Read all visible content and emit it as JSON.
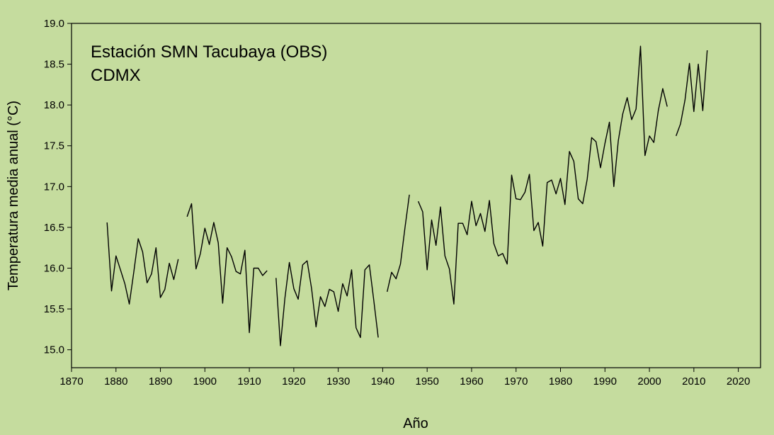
{
  "chart_data": {
    "type": "line",
    "title": "Estación SMN Tacubaya (OBS)",
    "subtitle": "CDMX",
    "xlabel": "Año",
    "ylabel": "Temperatura media anual (°C)",
    "xlim": [
      1870,
      2025
    ],
    "ylim": [
      14.78,
      19.0
    ],
    "x_ticks": [
      "1870",
      "1880",
      "1890",
      "1900",
      "1910",
      "1920",
      "1930",
      "1940",
      "1950",
      "1960",
      "1970",
      "1980",
      "1990",
      "2000",
      "2010",
      "2020"
    ],
    "y_ticks": [
      "15.0",
      "15.5",
      "16.0",
      "16.5",
      "17.0",
      "17.5",
      "18.0",
      "18.5",
      "19.0"
    ],
    "grid": false,
    "legend": "none",
    "line_color": "#000000",
    "background_color": "#c5dc9e",
    "series": [
      {
        "segments": [
          [
            [
              1878,
              16.56
            ],
            [
              1879,
              15.72
            ],
            [
              1880,
              16.15
            ],
            [
              1881,
              15.98
            ],
            [
              1882,
              15.81
            ],
            [
              1883,
              15.56
            ],
            [
              1884,
              15.95
            ],
            [
              1885,
              16.36
            ],
            [
              1886,
              16.2
            ],
            [
              1887,
              15.82
            ],
            [
              1888,
              15.93
            ],
            [
              1889,
              16.25
            ],
            [
              1890,
              15.64
            ],
            [
              1891,
              15.74
            ],
            [
              1892,
              16.06
            ],
            [
              1893,
              15.86
            ],
            [
              1894,
              16.11
            ]
          ],
          [
            [
              1896,
              16.63
            ],
            [
              1897,
              16.79
            ],
            [
              1898,
              15.99
            ],
            [
              1899,
              16.18
            ],
            [
              1900,
              16.49
            ],
            [
              1901,
              16.29
            ],
            [
              1902,
              16.56
            ],
            [
              1903,
              16.31
            ],
            [
              1904,
              15.57
            ],
            [
              1905,
              16.25
            ],
            [
              1906,
              16.14
            ],
            [
              1907,
              15.96
            ],
            [
              1908,
              15.93
            ],
            [
              1909,
              16.22
            ],
            [
              1910,
              15.21
            ],
            [
              1911,
              16.0
            ],
            [
              1912,
              16.0
            ],
            [
              1913,
              15.91
            ],
            [
              1914,
              15.97
            ]
          ],
          [
            [
              1916,
              15.88
            ],
            [
              1917,
              15.05
            ],
            [
              1918,
              15.63
            ],
            [
              1919,
              16.07
            ],
            [
              1920,
              15.75
            ],
            [
              1921,
              15.62
            ],
            [
              1922,
              16.04
            ],
            [
              1923,
              16.09
            ],
            [
              1924,
              15.75
            ],
            [
              1925,
              15.28
            ],
            [
              1926,
              15.65
            ],
            [
              1927,
              15.53
            ],
            [
              1928,
              15.74
            ],
            [
              1929,
              15.71
            ],
            [
              1930,
              15.47
            ],
            [
              1931,
              15.81
            ],
            [
              1932,
              15.66
            ],
            [
              1933,
              15.98
            ],
            [
              1934,
              15.27
            ],
            [
              1935,
              15.15
            ],
            [
              1936,
              15.98
            ],
            [
              1937,
              16.04
            ],
            [
              1938,
              15.6
            ],
            [
              1939,
              15.15
            ]
          ],
          [
            [
              1941,
              15.71
            ],
            [
              1942,
              15.95
            ],
            [
              1943,
              15.87
            ],
            [
              1944,
              16.05
            ],
            [
              1945,
              16.49
            ],
            [
              1946,
              16.9
            ]
          ],
          [
            [
              1948,
              16.82
            ],
            [
              1949,
              16.69
            ],
            [
              1950,
              15.98
            ],
            [
              1951,
              16.59
            ],
            [
              1952,
              16.28
            ],
            [
              1953,
              16.75
            ],
            [
              1954,
              16.15
            ],
            [
              1955,
              15.99
            ],
            [
              1956,
              15.56
            ],
            [
              1957,
              16.55
            ],
            [
              1958,
              16.55
            ],
            [
              1959,
              16.41
            ],
            [
              1960,
              16.82
            ],
            [
              1961,
              16.52
            ],
            [
              1962,
              16.67
            ],
            [
              1963,
              16.45
            ],
            [
              1964,
              16.83
            ],
            [
              1965,
              16.3
            ],
            [
              1966,
              16.15
            ],
            [
              1967,
              16.18
            ],
            [
              1968,
              16.05
            ],
            [
              1969,
              17.14
            ],
            [
              1970,
              16.85
            ],
            [
              1971,
              16.84
            ],
            [
              1972,
              16.93
            ],
            [
              1973,
              17.15
            ],
            [
              1974,
              16.46
            ],
            [
              1975,
              16.56
            ],
            [
              1976,
              16.27
            ],
            [
              1977,
              17.05
            ],
            [
              1978,
              17.08
            ],
            [
              1979,
              16.91
            ],
            [
              1980,
              17.1
            ],
            [
              1981,
              16.78
            ],
            [
              1982,
              17.43
            ],
            [
              1983,
              17.31
            ],
            [
              1984,
              16.85
            ],
            [
              1985,
              16.79
            ],
            [
              1986,
              17.09
            ],
            [
              1987,
              17.6
            ],
            [
              1988,
              17.55
            ],
            [
              1989,
              17.23
            ],
            [
              1990,
              17.53
            ],
            [
              1991,
              17.79
            ],
            [
              1992,
              17.0
            ],
            [
              1993,
              17.56
            ],
            [
              1994,
              17.89
            ],
            [
              1995,
              18.09
            ],
            [
              1996,
              17.82
            ],
            [
              1997,
              17.95
            ],
            [
              1998,
              18.72
            ],
            [
              1999,
              17.38
            ],
            [
              2000,
              17.62
            ],
            [
              2001,
              17.54
            ],
            [
              2002,
              17.93
            ],
            [
              2003,
              18.2
            ],
            [
              2004,
              17.98
            ]
          ],
          [
            [
              2006,
              17.62
            ],
            [
              2007,
              17.77
            ],
            [
              2008,
              18.06
            ],
            [
              2009,
              18.51
            ],
            [
              2010,
              17.92
            ],
            [
              2011,
              18.5
            ],
            [
              2012,
              17.93
            ],
            [
              2013,
              18.67
            ]
          ]
        ]
      }
    ]
  }
}
